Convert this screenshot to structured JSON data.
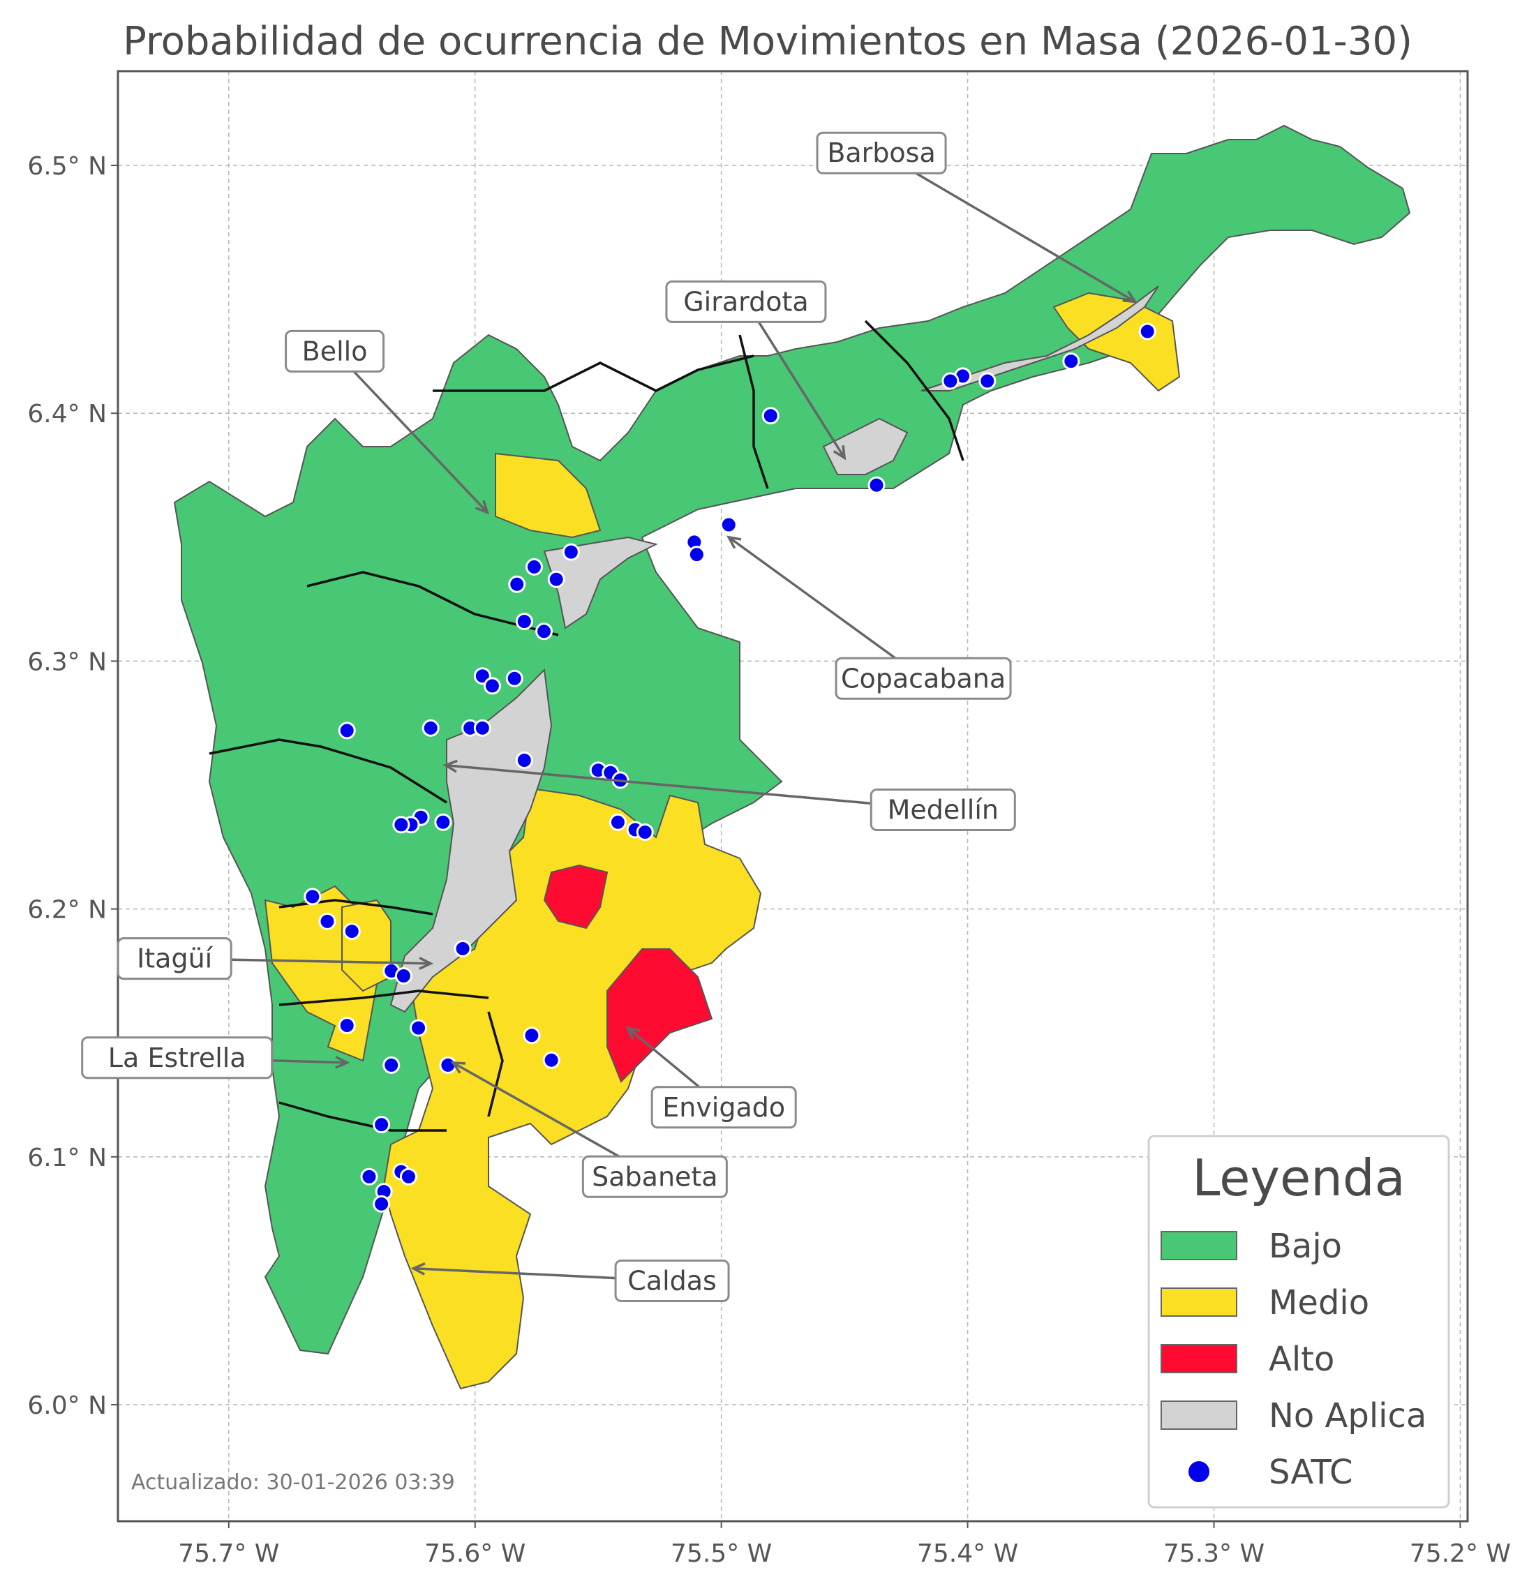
{
  "title": "Probabilidad de ocurrencia de Movimientos en Masa (2026-01-30)",
  "updated": "Actualizado: 30-01-2026 03:39",
  "axes": {
    "x_ticks": [
      {
        "value": -75.7,
        "label": "75.7° W"
      },
      {
        "value": -75.6,
        "label": "75.6° W"
      },
      {
        "value": -75.5,
        "label": "75.5° W"
      },
      {
        "value": -75.4,
        "label": "75.4° W"
      },
      {
        "value": -75.3,
        "label": "75.3° W"
      },
      {
        "value": -75.2,
        "label": "75.2° W"
      }
    ],
    "y_ticks": [
      {
        "value": 6.5,
        "label": "6.5° N"
      },
      {
        "value": 6.4,
        "label": "6.4° N"
      },
      {
        "value": 6.3,
        "label": "6.3° N"
      },
      {
        "value": 6.2,
        "label": "6.2° N"
      },
      {
        "value": 6.1,
        "label": "6.1° N"
      },
      {
        "value": 6.0,
        "label": "6.0° N"
      }
    ],
    "xlim": [
      -75.745,
      -75.197
    ],
    "ylim": [
      5.953,
      6.538
    ],
    "grid": true
  },
  "colors": {
    "bajo": "#48c774",
    "medio": "#fbdf22",
    "alto": "#ff0a31",
    "no_aplica": "#d3d3d3",
    "satc": "#0000ee"
  },
  "legend": {
    "title": "Leyenda",
    "placement": "bottom-right",
    "items": [
      {
        "label": "Bajo",
        "key": "bajo",
        "kind": "patch"
      },
      {
        "label": "Medio",
        "key": "medio",
        "kind": "patch"
      },
      {
        "label": "Alto",
        "key": "alto",
        "kind": "patch"
      },
      {
        "label": "No Aplica",
        "key": "no_aplica",
        "kind": "patch"
      },
      {
        "label": "SATC",
        "key": "satc",
        "kind": "point"
      }
    ]
  },
  "municipalities": [
    {
      "name": "Barbosa",
      "label_lon": -75.435,
      "label_lat": 6.505,
      "lon": -75.332,
      "lat": 6.445
    },
    {
      "name": "Girardota",
      "label_lon": -75.49,
      "label_lat": 6.445,
      "lon": -75.45,
      "lat": 6.382
    },
    {
      "name": "Bello",
      "label_lon": -75.657,
      "label_lat": 6.425,
      "lon": -75.595,
      "lat": 6.36
    },
    {
      "name": "Copacabana",
      "label_lon": -75.418,
      "label_lat": 6.293,
      "lon": -75.497,
      "lat": 6.35
    },
    {
      "name": "Medellín",
      "label_lon": -75.41,
      "label_lat": 6.24,
      "lon": -75.612,
      "lat": 6.258
    },
    {
      "name": "Itagüí",
      "label_lon": -75.722,
      "label_lat": 6.18,
      "lon": -75.618,
      "lat": 6.178
    },
    {
      "name": "La Estrella",
      "label_lon": -75.721,
      "label_lat": 6.14,
      "lon": -75.652,
      "lat": 6.138
    },
    {
      "name": "Envigado",
      "label_lon": -75.499,
      "label_lat": 6.12,
      "lon": -75.538,
      "lat": 6.152
    },
    {
      "name": "Sabaneta",
      "label_lon": -75.527,
      "label_lat": 6.092,
      "lon": -75.609,
      "lat": 6.138
    },
    {
      "name": "Caldas",
      "label_lon": -75.52,
      "label_lat": 6.05,
      "lon": -75.625,
      "lat": 6.055
    }
  ],
  "satc_points": [
    [
      -75.327,
      6.433
    ],
    [
      -75.358,
      6.421
    ],
    [
      -75.392,
      6.413
    ],
    [
      -75.402,
      6.415
    ],
    [
      -75.407,
      6.413
    ],
    [
      -75.48,
      6.399
    ],
    [
      -75.437,
      6.371
    ],
    [
      -75.497,
      6.355
    ],
    [
      -75.511,
      6.348
    ],
    [
      -75.51,
      6.343
    ],
    [
      -75.561,
      6.344
    ],
    [
      -75.567,
      6.333
    ],
    [
      -75.576,
      6.338
    ],
    [
      -75.583,
      6.331
    ],
    [
      -75.58,
      6.316
    ],
    [
      -75.572,
      6.312
    ],
    [
      -75.584,
      6.293
    ],
    [
      -75.597,
      6.294
    ],
    [
      -75.593,
      6.29
    ],
    [
      -75.602,
      6.273
    ],
    [
      -75.597,
      6.273
    ],
    [
      -75.618,
      6.273
    ],
    [
      -75.652,
      6.272
    ],
    [
      -75.58,
      6.26
    ],
    [
      -75.55,
      6.256
    ],
    [
      -75.545,
      6.255
    ],
    [
      -75.541,
      6.252
    ],
    [
      -75.542,
      6.235
    ],
    [
      -75.535,
      6.232
    ],
    [
      -75.531,
      6.231
    ],
    [
      -75.622,
      6.237
    ],
    [
      -75.626,
      6.234
    ],
    [
      -75.63,
      6.234
    ],
    [
      -75.613,
      6.235
    ],
    [
      -75.666,
      6.205
    ],
    [
      -75.66,
      6.195
    ],
    [
      -75.65,
      6.191
    ],
    [
      -75.605,
      6.184
    ],
    [
      -75.634,
      6.175
    ],
    [
      -75.629,
      6.173
    ],
    [
      -75.623,
      6.152
    ],
    [
      -75.652,
      6.153
    ],
    [
      -75.634,
      6.137
    ],
    [
      -75.611,
      6.137
    ],
    [
      -75.577,
      6.149
    ],
    [
      -75.569,
      6.139
    ],
    [
      -75.638,
      6.113
    ],
    [
      -75.643,
      6.092
    ],
    [
      -75.63,
      6.094
    ],
    [
      -75.627,
      6.092
    ],
    [
      -75.637,
      6.086
    ],
    [
      -75.638,
      6.081
    ]
  ]
}
